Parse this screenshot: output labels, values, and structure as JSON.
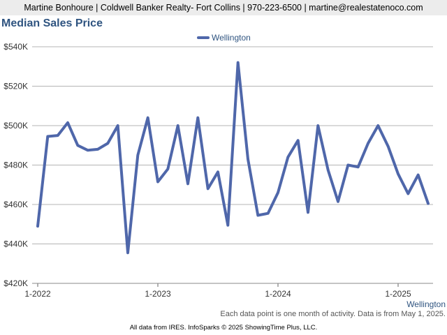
{
  "header": {
    "contact": "Martine Bonhoure | Coldwell Banker Realty- Fort Collins | 970-223-6500 | martine@realestatenoco.com"
  },
  "chart_data": {
    "type": "line",
    "title": "Median Sales Price",
    "xlabel": "",
    "ylabel": "",
    "ylim": [
      420000,
      540000
    ],
    "yticks": [
      420000,
      440000,
      460000,
      480000,
      500000,
      520000,
      540000
    ],
    "ytick_labels": [
      "$420K",
      "$440K",
      "$460K",
      "$480K",
      "$500K",
      "$520K",
      "$540K"
    ],
    "xtick_labels": [
      "1-2022",
      "1-2023",
      "1-2024",
      "1-2025"
    ],
    "x_range": [
      "2022-01",
      "2025-04"
    ],
    "grid": "horizontal",
    "legend": "top-center",
    "x_axis_series_label": "Wellington",
    "series": [
      {
        "name": "Wellington",
        "color": "#4f67aa",
        "x": [
          "2022-01",
          "2022-02",
          "2022-03",
          "2022-04",
          "2022-05",
          "2022-06",
          "2022-07",
          "2022-08",
          "2022-09",
          "2022-10",
          "2022-11",
          "2022-12",
          "2023-01",
          "2023-02",
          "2023-03",
          "2023-04",
          "2023-05",
          "2023-06",
          "2023-07",
          "2023-08",
          "2023-09",
          "2023-10",
          "2023-11",
          "2023-12",
          "2024-01",
          "2024-02",
          "2024-03",
          "2024-04",
          "2024-05",
          "2024-06",
          "2024-07",
          "2024-08",
          "2024-09",
          "2024-10",
          "2024-11",
          "2024-12",
          "2025-01",
          "2025-02",
          "2025-03",
          "2025-04"
        ],
        "values": [
          449000,
          494500,
          495000,
          501500,
          490000,
          487500,
          488000,
          491000,
          500000,
          435500,
          485000,
          504000,
          471500,
          478000,
          500000,
          470500,
          504000,
          468000,
          476500,
          449500,
          532000,
          483000,
          454500,
          455500,
          466000,
          484000,
          492500,
          456000,
          500000,
          477500,
          461500,
          480000,
          479000,
          491000,
          500000,
          489500,
          475500,
          465500,
          475000,
          460500
        ]
      }
    ]
  },
  "footer": {
    "note": "Each data point is one month of activity. Data is from May 1, 2025.",
    "credit": "All data from IRES. InfoSparks © 2025 ShowingTime Plus, LLC."
  }
}
